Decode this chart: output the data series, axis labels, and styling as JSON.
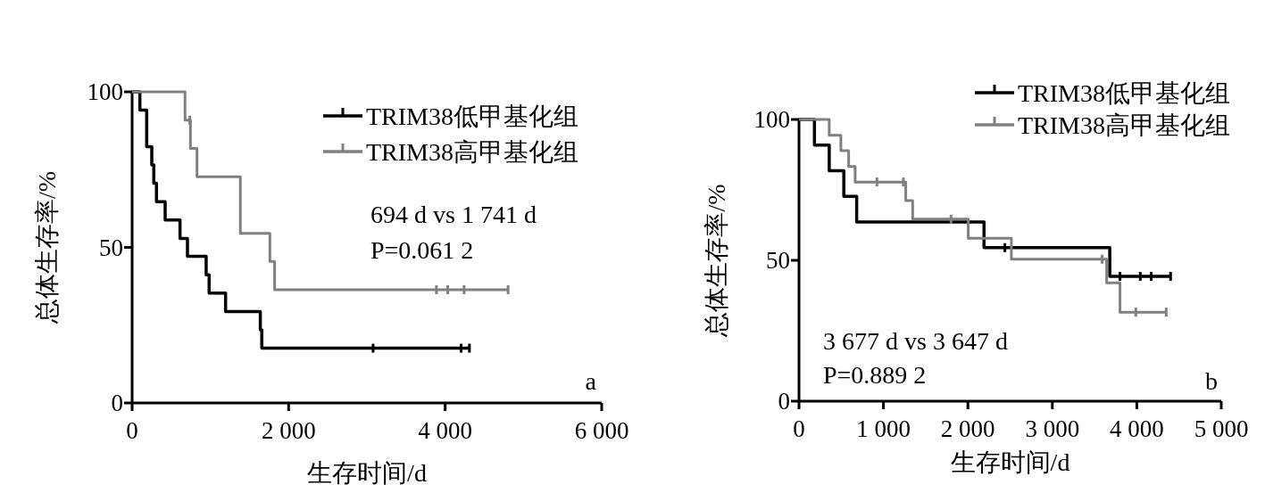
{
  "chart_data": [
    {
      "type": "step",
      "xlabel": "生存时间/d",
      "ylabel": "总体生存率/%",
      "xlim": [
        0,
        6000
      ],
      "ylim": [
        0,
        100
      ],
      "xticks": [
        0,
        {
          "value": 2000,
          "label": "2 000"
        },
        {
          "value": 4000,
          "label": "4 000"
        },
        {
          "value": 6000,
          "label": "6 000"
        }
      ],
      "yticks": [
        0,
        50,
        100
      ],
      "legend": "top right",
      "annotations": [
        "694 d vs 1 741 d",
        "P=0.061 2",
        "a"
      ],
      "series": [
        {
          "name": "TRIM38低甲基化组",
          "color": "#000000",
          "x": [
            0,
            99,
            186,
            251,
            277,
            311,
            422,
            612,
            707,
            946,
            984,
            1194,
            1638,
            1657,
            3079,
            4204,
            4310
          ],
          "values": [
            100,
            94.1,
            82.4,
            76.5,
            70.6,
            64.7,
            58.8,
            52.9,
            47.1,
            41.2,
            35.3,
            29.4,
            23.5,
            17.6,
            17.6,
            17.6,
            17.6
          ]
        },
        {
          "name": "TRIM38高甲基化组",
          "color": "#808080",
          "x": [
            0,
            676,
            737,
            745,
            829,
            1383,
            1760,
            1821,
            3888,
            4033,
            4242,
            4804
          ],
          "values": [
            100,
            90.9,
            90.9,
            81.8,
            72.7,
            54.5,
            45.5,
            36.4,
            36.4,
            36.4,
            36.4,
            36.4
          ]
        }
      ]
    },
    {
      "type": "step",
      "xlabel": "生存时间/d",
      "ylabel": "总体生存率/%",
      "xlim": [
        0,
        5000
      ],
      "ylim": [
        0,
        100
      ],
      "xticks": [
        0,
        {
          "value": 1000,
          "label": "1 000"
        },
        {
          "value": 2000,
          "label": "2 000"
        },
        {
          "value": 3000,
          "label": "3 000"
        },
        {
          "value": 4000,
          "label": "4 000"
        },
        {
          "value": 5000,
          "label": "5 000"
        }
      ],
      "yticks": [
        0,
        50,
        100
      ],
      "legend": "top right",
      "annotations": [
        "3 677 d vs 3 647 d",
        "P=0.889 2",
        "b"
      ],
      "series": [
        {
          "name": "TRIM38低甲基化组",
          "color": "#000000",
          "x": [
            0,
            183,
            358,
            531,
            683,
            2191,
            2438,
            3680,
            3801,
            4041,
            4171,
            4400
          ],
          "values": [
            100,
            90.9,
            81.8,
            72.7,
            63.6,
            54.5,
            54.5,
            44.3,
            44.3,
            44.3,
            44.3,
            44.3
          ]
        },
        {
          "name": "TRIM38高甲基化组",
          "color": "#808080",
          "x": [
            0,
            358,
            496,
            588,
            665,
            923,
            1236,
            1264,
            1346,
            1800,
            2004,
            2515,
            3590,
            3643,
            3801,
            3988,
            4348
          ],
          "values": [
            100,
            94.4,
            88.9,
            83.3,
            77.8,
            77.8,
            77.8,
            71.2,
            64.6,
            64.6,
            57.8,
            50.4,
            50.4,
            42.0,
            31.6,
            31.6,
            31.6
          ]
        }
      ]
    }
  ]
}
